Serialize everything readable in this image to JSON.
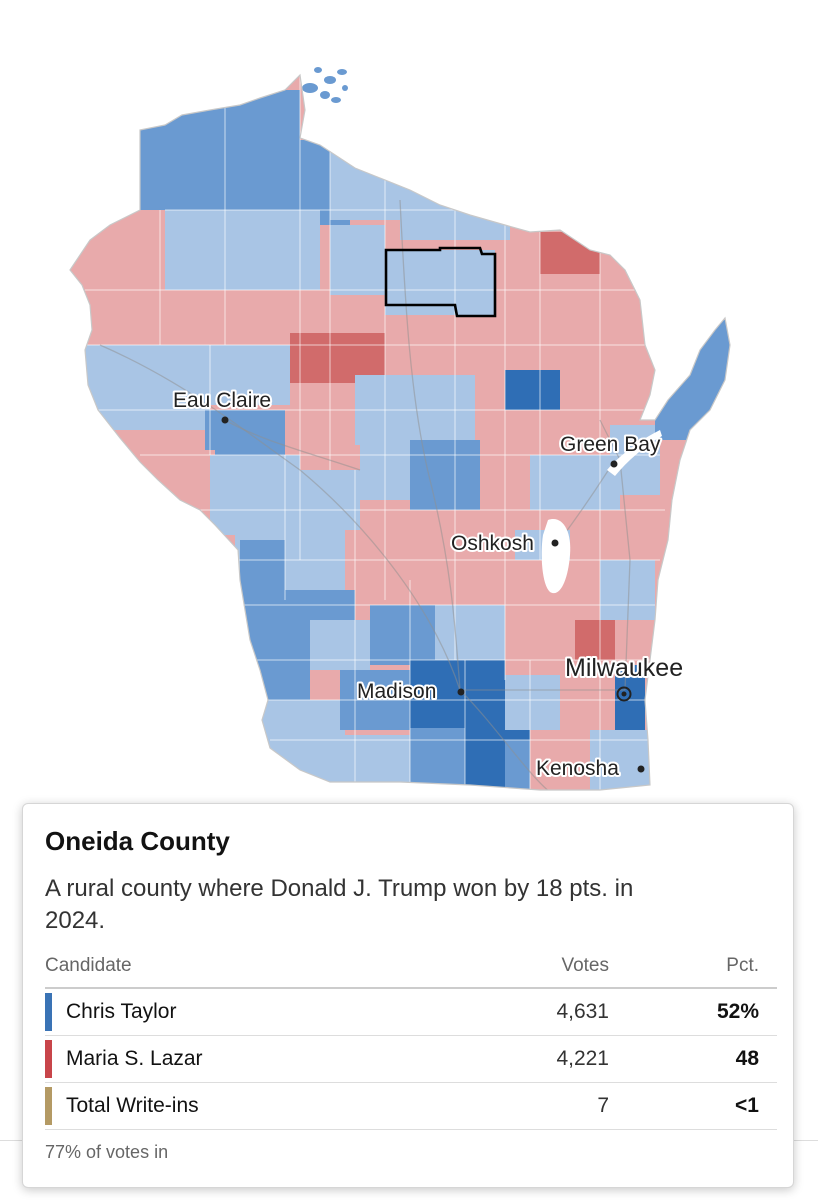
{
  "map": {
    "colors": {
      "dem_light": "#a9c5e5",
      "dem_mid": "#6a9ad1",
      "dem_dark": "#2f6eb5",
      "rep_light": "#e8aaab",
      "rep_mid": "#d16b6b",
      "outline": "#000000"
    },
    "cities": [
      "Eau Claire",
      "Green Bay",
      "Oshkosh",
      "Milwaukee",
      "Madison",
      "Kenosha"
    ],
    "highlighted_county": "Oneida County"
  },
  "tooltip": {
    "title": "Oneida County",
    "description": "A rural county where Donald J. Trump won by 18 pts. in 2024.",
    "headers": {
      "candidate": "Candidate",
      "votes": "Votes",
      "pct": "Pct."
    },
    "rows": [
      {
        "name": "Chris Taylor",
        "votes": "4,631",
        "pct": "52%",
        "color": "#3a73b5"
      },
      {
        "name": "Maria S. Lazar",
        "votes": "4,221",
        "pct": "48",
        "color": "#c8454a"
      },
      {
        "name": "Total Write-ins",
        "votes": "7",
        "pct": "<1",
        "color": "#b49a64"
      }
    ],
    "footnote": "77% of votes in"
  }
}
